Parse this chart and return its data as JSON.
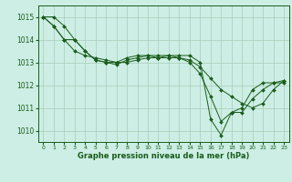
{
  "title": "Graphe pression niveau de la mer (hPa)",
  "bg_color": "#cceee4",
  "grid_color": "#aaccbb",
  "line_color": "#1a5c1a",
  "marker_color": "#1a5c1a",
  "xlim": [
    -0.5,
    23.5
  ],
  "ylim": [
    1009.5,
    1015.5
  ],
  "yticks": [
    1010,
    1011,
    1012,
    1013,
    1014,
    1015
  ],
  "xticks": [
    0,
    1,
    2,
    3,
    4,
    5,
    6,
    7,
    8,
    9,
    10,
    11,
    12,
    13,
    14,
    15,
    16,
    17,
    18,
    19,
    20,
    21,
    22,
    23
  ],
  "series": [
    [
      1015.0,
      1015.0,
      1014.6,
      1014.0,
      1013.5,
      1013.1,
      1013.0,
      1012.9,
      1013.1,
      1013.2,
      1013.3,
      1013.2,
      1013.3,
      1013.3,
      1013.3,
      1013.0,
      1010.5,
      1009.8,
      1010.8,
      1011.0,
      1011.8,
      1012.1,
      1012.1,
      1012.1
    ],
    [
      1015.0,
      1014.6,
      1014.0,
      1014.0,
      1013.5,
      1013.1,
      1013.0,
      1013.0,
      1013.2,
      1013.3,
      1013.3,
      1013.3,
      1013.3,
      1013.2,
      1013.0,
      1012.5,
      1011.5,
      1010.4,
      1010.8,
      1010.8,
      1011.4,
      1011.8,
      1012.1,
      1012.2
    ],
    [
      1015.0,
      1014.6,
      1014.0,
      1013.5,
      1013.3,
      1013.2,
      1013.1,
      1013.0,
      1013.0,
      1013.1,
      1013.2,
      1013.2,
      1013.2,
      1013.2,
      1013.1,
      1012.8,
      1012.3,
      1011.8,
      1011.5,
      1011.2,
      1011.0,
      1011.2,
      1011.8,
      1012.2
    ]
  ],
  "figwidth": 3.2,
  "figheight": 2.0,
  "dpi": 100
}
